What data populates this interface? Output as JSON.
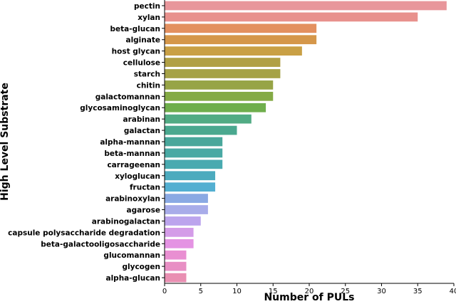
{
  "chart_data": {
    "type": "bar",
    "orientation": "horizontal",
    "xlabel": "Number of PULs",
    "ylabel": "High Level Substrate",
    "xlim": [
      0,
      40
    ],
    "xticks": [
      "0",
      "5",
      "10",
      "15",
      "20",
      "25",
      "30",
      "35",
      "40"
    ],
    "grid": false,
    "categories": [
      "pectin",
      "xylan",
      "beta-glucan",
      "alginate",
      "host glycan",
      "cellulose",
      "starch",
      "chitin",
      "galactomannan",
      "glycosaminoglycan",
      "arabinan",
      "galactan",
      "alpha-mannan",
      "beta-mannan",
      "carrageenan",
      "xyloglucan",
      "fructan",
      "arabinoxylan",
      "agarose",
      "arabinogalactan",
      "capsule polysaccharide degradation",
      "beta-galactooligosaccharide",
      "glucomannan",
      "glycogen",
      "alpha-glucan"
    ],
    "values": [
      39,
      35,
      21,
      21,
      19,
      16,
      16,
      15,
      15,
      14,
      12,
      10,
      8,
      8,
      8,
      7,
      7,
      6,
      6,
      5,
      4,
      4,
      3,
      3,
      3
    ],
    "colors": [
      "#e8969b",
      "#e8918d",
      "#e3905f",
      "#d5974a",
      "#c9a045",
      "#b1a045",
      "#a6a247",
      "#97a446",
      "#84aa45",
      "#6fae4c",
      "#51ab84",
      "#4aa88f",
      "#49a79b",
      "#49a9a4",
      "#49aab0",
      "#4cabbe",
      "#53afd1",
      "#8aa9e3",
      "#a8ace9",
      "#bca4ed",
      "#d49ce8",
      "#e493e3",
      "#e98fd2",
      "#e88fc4",
      "#e98fb2"
    ]
  }
}
